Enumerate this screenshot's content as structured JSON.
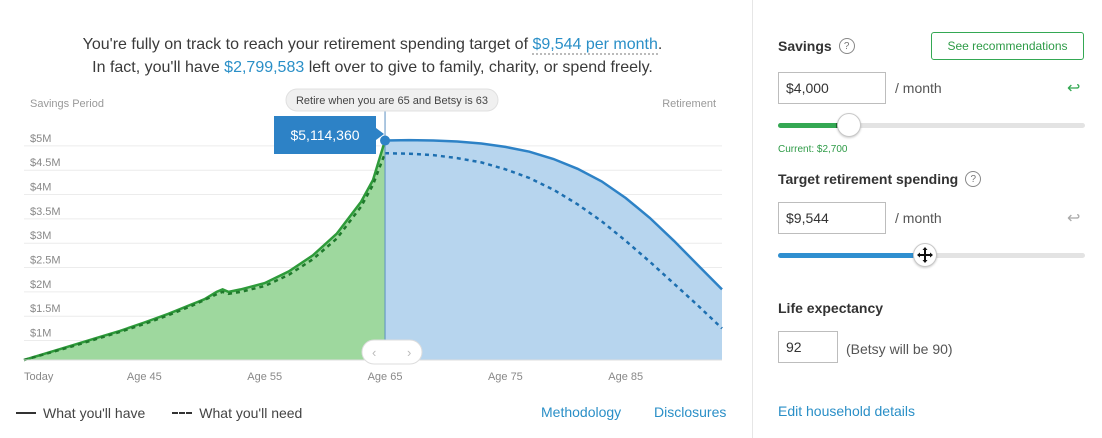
{
  "headline": {
    "line1_prefix": "You're fully on track to reach your retirement spending target of ",
    "line1_amount": "$9,544 per month",
    "line1_suffix": ".",
    "line2_prefix": "In fact, you'll have ",
    "line2_amount": "$2,799,583",
    "line2_suffix": " left over to give to family, charity, or spend freely."
  },
  "chart_data": {
    "type": "area",
    "period_left": "Savings Period",
    "period_right": "Retirement",
    "retire_tooltip": "Retire when you are 65 and Betsy is 63",
    "peak_label": "$5,114,360",
    "y_ticks": [
      "$1M",
      "$1.5M",
      "$2M",
      "$2.5M",
      "$3M",
      "$3.5M",
      "$4M",
      "$4.5M",
      "$5M"
    ],
    "y_tick_values": [
      1,
      1.5,
      2,
      2.5,
      3,
      3.5,
      4,
      4.5,
      5
    ],
    "x_ticks": [
      "Today",
      "Age 45",
      "Age 55",
      "Age 65",
      "Age 75",
      "Age 85"
    ],
    "x_tick_values": [
      35,
      45,
      55,
      65,
      75,
      85
    ],
    "xlim": [
      35,
      93
    ],
    "ylim": [
      0.6,
      5.45
    ],
    "retire_age": 65,
    "series": [
      {
        "name": "What you'll have",
        "x": [
          35,
          37,
          39,
          41,
          43,
          45,
          47,
          49,
          49.5,
          50,
          51,
          51.5,
          52,
          53,
          55,
          57,
          59,
          61,
          63,
          64,
          65,
          67,
          69,
          71,
          73,
          75,
          77,
          79,
          81,
          83,
          85,
          87,
          89,
          91,
          93
        ],
        "y": [
          0.6,
          0.75,
          0.9,
          1.05,
          1.2,
          1.37,
          1.55,
          1.75,
          1.8,
          1.85,
          2.0,
          2.05,
          2.0,
          2.05,
          2.18,
          2.42,
          2.75,
          3.2,
          3.85,
          4.3,
          5.11,
          5.12,
          5.11,
          5.09,
          5.05,
          4.98,
          4.88,
          4.73,
          4.53,
          4.27,
          3.93,
          3.52,
          3.05,
          2.55,
          2.05
        ]
      },
      {
        "name": "What you'll need",
        "x": [
          35,
          37,
          39,
          41,
          43,
          45,
          47,
          49,
          51,
          51.5,
          52,
          53,
          55,
          57,
          59,
          61,
          63,
          64,
          65,
          67,
          69,
          71,
          73,
          75,
          77,
          79,
          81,
          83,
          85,
          87,
          89,
          91,
          93
        ],
        "y": [
          0.6,
          0.74,
          0.88,
          1.03,
          1.18,
          1.34,
          1.52,
          1.72,
          1.95,
          2.0,
          1.96,
          2.0,
          2.12,
          2.35,
          2.67,
          3.1,
          3.75,
          4.2,
          4.85,
          4.84,
          4.81,
          4.75,
          4.66,
          4.52,
          4.34,
          4.1,
          3.8,
          3.45,
          3.05,
          2.62,
          2.17,
          1.72,
          1.25
        ]
      }
    ]
  },
  "legend": {
    "have": "What you'll have",
    "need": "What you'll need"
  },
  "links": {
    "methodology": "Methodology",
    "disclosures": "Disclosures",
    "edit_household": "Edit household details"
  },
  "savings": {
    "title": "Savings",
    "help": "?",
    "recommend_button": "See recommendations",
    "value": "$4,000",
    "unit": "/ month",
    "slider_level": 0.23,
    "current_marker": 0.19,
    "current_label": "Current: $2,700",
    "undo_icon": "undo-arrow-icon",
    "color": "#34a853"
  },
  "target": {
    "title": "Target retirement spending",
    "help": "?",
    "value": "$9,544",
    "unit": "/ month",
    "slider_level": 0.48,
    "undo_icon": "undo-arrow-icon",
    "color": "#2f8fd0"
  },
  "life": {
    "title": "Life expectancy",
    "value": "92",
    "note": "(Betsy will be 90)"
  },
  "colors": {
    "have_fill": "#9ed89e",
    "have_line": "#2e9b3a",
    "retire_fill": "#b7d5ee",
    "retire_line": "#2d82c6",
    "accent": "#2a8fc7"
  }
}
